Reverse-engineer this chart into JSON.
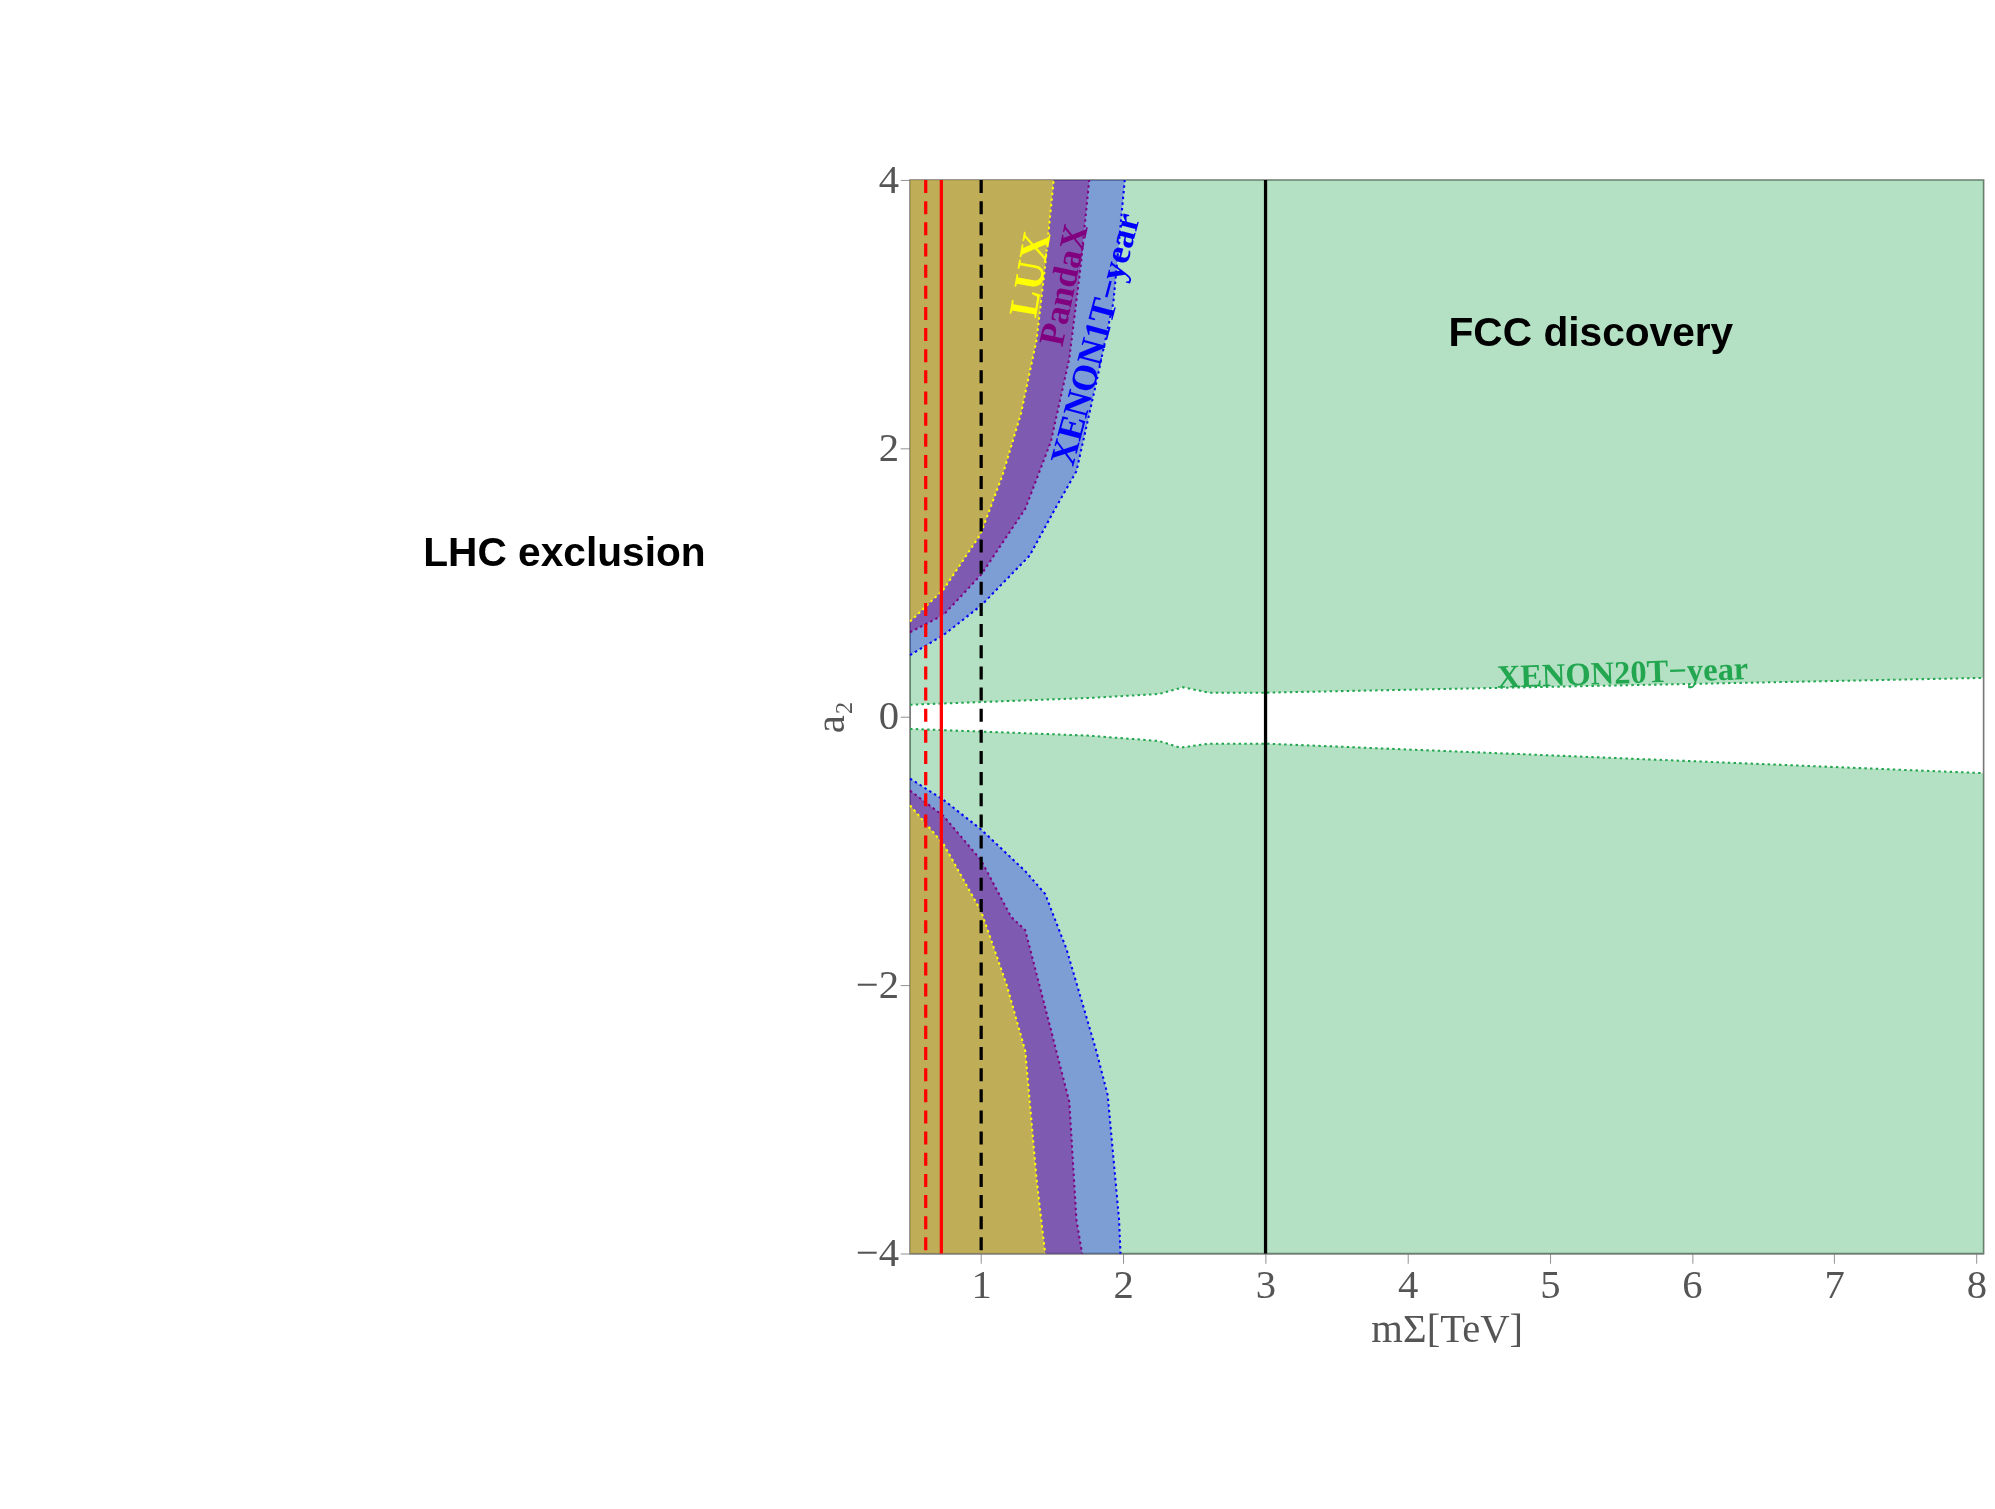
{
  "chart_data": {
    "type": "line",
    "xlabel": "mΣ[TeV]",
    "ylabel": "a₂",
    "xlim": [
      0.5,
      8.05
    ],
    "ylim": [
      -4,
      4
    ],
    "xticks": [
      1,
      2,
      3,
      4,
      5,
      6,
      7,
      8
    ],
    "yticks": [
      -4,
      -2,
      0,
      2,
      4
    ],
    "line_style": "dotted",
    "series": [
      {
        "name": "XENON20T−year",
        "color": "#22a650",
        "x": [
          0.5,
          1.0,
          1.75,
          2.25,
          2.42,
          2.6,
          3.0,
          8.05
        ],
        "values": [
          0.09,
          0.11,
          0.14,
          0.17,
          0.22,
          0.18,
          0.18,
          0.29
        ],
        "lower": [
          0.09,
          0.11,
          0.14,
          0.17,
          0.22,
          0.18,
          0.18,
          0.29
        ],
        "upper": [
          4,
          4,
          4,
          4,
          4,
          4,
          4,
          4
        ]
      },
      {
        "color": "#22a650",
        "x": [
          0.5,
          1.0,
          1.75,
          2.25,
          2.4,
          2.6,
          3.0,
          8.05
        ],
        "values": [
          -0.09,
          -0.11,
          -0.14,
          -0.18,
          -0.23,
          -0.2,
          -0.2,
          -0.42
        ],
        "lower": [
          -4,
          -4,
          -4,
          -4,
          -4,
          -4,
          -4,
          -4
        ],
        "upper": [
          -0.09,
          -0.11,
          -0.14,
          -0.18,
          -0.23,
          -0.2,
          -0.2,
          -0.42
        ]
      },
      {
        "name": "XENON1T−year",
        "color": "#0000ff",
        "x": [
          0.5,
          0.736,
          1.0,
          1.34,
          1.52,
          1.67,
          1.82,
          1.93,
          2.01
        ],
        "values": [
          0.46,
          0.61,
          0.83,
          1.2,
          1.55,
          1.83,
          2.54,
          3.09,
          4
        ],
        "lower": [
          0.46,
          0.61,
          0.83,
          1.2,
          1.55,
          1.83,
          2.54,
          3.09,
          4
        ],
        "upper": [
          4,
          4,
          4,
          4,
          4,
          4,
          4,
          4,
          4
        ]
      },
      {
        "color": "#0000ff",
        "x": [
          0.5,
          0.736,
          1.0,
          1.31,
          1.45,
          1.6,
          1.81,
          1.89,
          1.97,
          1.98
        ],
        "values": [
          -0.46,
          -0.62,
          -0.84,
          -1.15,
          -1.32,
          -1.73,
          -2.49,
          -2.82,
          -3.75,
          -4
        ],
        "lower": [
          -4,
          -4,
          -4,
          -4,
          -4,
          -4,
          -4,
          -4,
          -4,
          -4
        ],
        "upper": [
          -0.46,
          -0.62,
          -0.84,
          -1.15,
          -1.32,
          -1.73,
          -2.49,
          -2.82,
          -3.75,
          -4
        ]
      },
      {
        "name": "PandaX",
        "color": "#800080",
        "x": [
          0.5,
          0.736,
          1.0,
          1.31,
          1.49,
          1.62,
          1.7,
          1.76
        ],
        "values": [
          0.63,
          0.76,
          1.06,
          1.55,
          2.05,
          2.67,
          3.36,
          4
        ],
        "lower": [
          0.63,
          0.76,
          1.06,
          1.55,
          2.05,
          2.67,
          3.36,
          4
        ],
        "upper": [
          4,
          4,
          4,
          4,
          4,
          4,
          4,
          4
        ]
      },
      {
        "color": "#800080",
        "x": [
          0.5,
          0.736,
          1.0,
          1.21,
          1.31,
          1.49,
          1.62,
          1.67,
          1.71
        ],
        "values": [
          -0.55,
          -0.74,
          -1.07,
          -1.49,
          -1.59,
          -2.33,
          -2.87,
          -3.75,
          -4
        ],
        "lower": [
          -4,
          -4,
          -4,
          -4,
          -4,
          -4,
          -4,
          -4,
          -4
        ],
        "upper": [
          -0.55,
          -0.74,
          -1.07,
          -1.49,
          -1.59,
          -2.33,
          -2.87,
          -3.75,
          -4
        ]
      },
      {
        "name": "LUX",
        "color": "#ffff00",
        "x": [
          0.5,
          0.736,
          0.995,
          1.15,
          1.28,
          1.39,
          1.45,
          1.51
        ],
        "values": [
          0.71,
          0.95,
          1.36,
          1.8,
          2.26,
          2.81,
          3.36,
          4
        ],
        "lower": [
          0.71,
          0.95,
          1.36,
          1.8,
          2.26,
          2.81,
          3.36,
          4
        ],
        "upper": [
          4,
          4,
          4,
          4,
          4,
          4,
          4,
          4
        ]
      },
      {
        "color": "#ffff00",
        "x": [
          0.5,
          0.736,
          1.0,
          1.18,
          1.31,
          1.39,
          1.45
        ],
        "values": [
          -0.66,
          -0.95,
          -1.45,
          -2.0,
          -2.49,
          -3.45,
          -4
        ],
        "lower": [
          -4,
          -4,
          -4,
          -4,
          -4,
          -4,
          -4
        ],
        "upper": [
          -0.66,
          -0.95,
          -1.45,
          -2.0,
          -2.49,
          -3.45,
          -4
        ]
      }
    ],
    "ref_lines": [
      {
        "axis": "x",
        "value": 0.61,
        "color": "#ff0000",
        "line_style": "dashed"
      },
      {
        "axis": "x",
        "value": 0.72,
        "color": "#ff0000",
        "line_style": "solid"
      },
      {
        "axis": "x",
        "value": 1,
        "color": "#000000",
        "line_style": "dashed"
      },
      {
        "axis": "x",
        "value": 3,
        "color": "#000000",
        "line_style": "solid",
        "label": "FCC discovery"
      }
    ],
    "annotations": [
      "LHC exclusion"
    ]
  }
}
